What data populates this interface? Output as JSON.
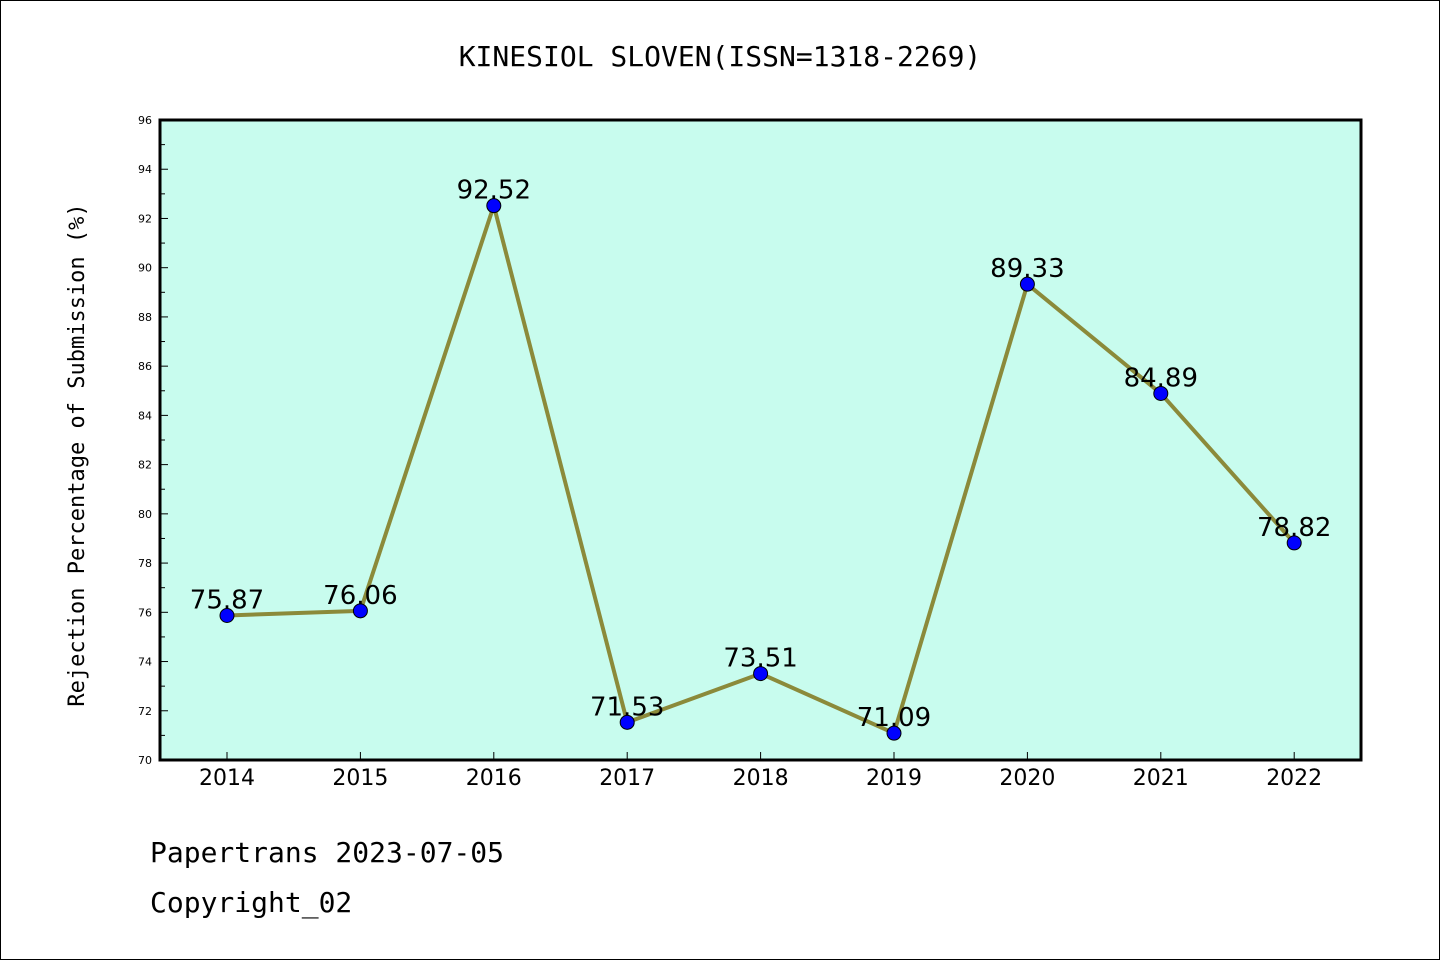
{
  "chart_data": {
    "type": "line",
    "title": "KINESIOL SLOVEN(ISSN=1318-2269)",
    "xlabel": "",
    "ylabel": "Rejection Percentage of Submission (%)",
    "categories": [
      "2014",
      "2015",
      "2016",
      "2017",
      "2018",
      "2019",
      "2020",
      "2021",
      "2022"
    ],
    "values": [
      75.87,
      76.06,
      92.52,
      71.53,
      73.51,
      71.09,
      89.33,
      84.89,
      78.82
    ],
    "value_labels": [
      "75.87",
      "76.06",
      "92.52",
      "71.53",
      "73.51",
      "71.09",
      "89.33",
      "84.89",
      "78.82"
    ],
    "ylim": [
      70,
      96
    ],
    "y_ticks": [
      "70",
      "72",
      "74",
      "76",
      "78",
      "80",
      "82",
      "84",
      "86",
      "88",
      "90",
      "92",
      "94",
      "96"
    ],
    "grid": false,
    "legend": "none",
    "colors": {
      "plot_background": "#c8fcee",
      "line": "#8b8a3a",
      "marker": "#0000ff"
    }
  },
  "footer": {
    "line1": "Papertrans 2023-07-05",
    "line2": "Copyright_02"
  }
}
